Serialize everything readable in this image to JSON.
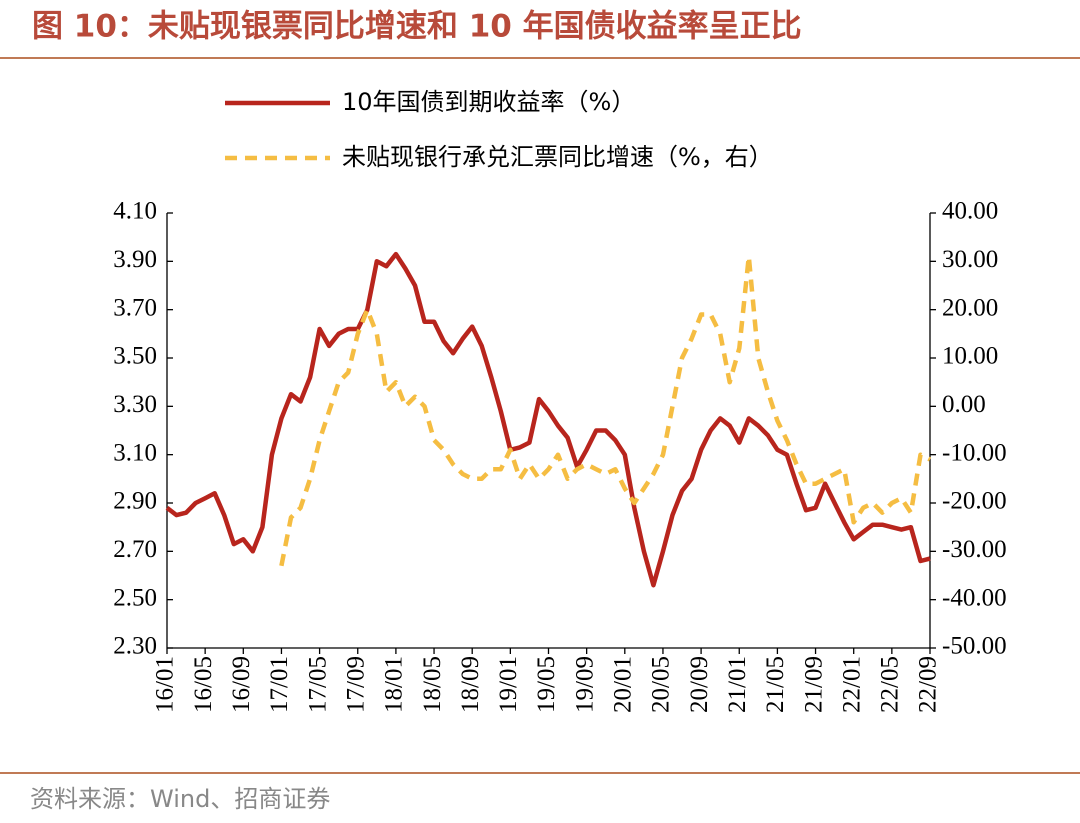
{
  "chart_data": {
    "type": "line",
    "title": "图 10：未贴现银票同比增速和 10 年国债收益率呈正比",
    "source": "资料来源：Wind、招商证券",
    "categories": [
      "16/01",
      null,
      null,
      null,
      "16/05",
      null,
      null,
      null,
      "16/09",
      null,
      null,
      null,
      "17/01",
      null,
      null,
      null,
      "17/05",
      null,
      null,
      null,
      "17/09",
      null,
      null,
      null,
      "18/01",
      null,
      null,
      null,
      "18/05",
      null,
      null,
      null,
      "18/09",
      null,
      null,
      null,
      "19/01",
      null,
      null,
      null,
      "19/05",
      null,
      null,
      null,
      "19/09",
      null,
      null,
      null,
      "20/01",
      null,
      null,
      null,
      "20/05",
      null,
      null,
      null,
      "20/09",
      null,
      null,
      null,
      "21/01",
      null,
      null,
      null,
      "21/05",
      null,
      null,
      null,
      "21/09",
      null,
      null,
      null,
      "22/01",
      null,
      null,
      null,
      "22/05",
      null,
      null,
      null,
      "22/09"
    ],
    "series": [
      {
        "name": "10年国债到期收益率（%）",
        "color": "#b8251d",
        "dash": false,
        "values": [
          2.88,
          2.85,
          2.86,
          2.9,
          2.92,
          2.94,
          2.85,
          2.73,
          2.75,
          2.7,
          2.8,
          3.1,
          3.25,
          3.35,
          3.32,
          3.42,
          3.62,
          3.55,
          3.6,
          3.62,
          3.62,
          3.7,
          3.9,
          3.88,
          3.93,
          3.87,
          3.8,
          3.65,
          3.65,
          3.57,
          3.52,
          3.58,
          3.63,
          3.55,
          3.42,
          3.28,
          3.12,
          3.13,
          3.15,
          3.33,
          3.28,
          3.22,
          3.17,
          3.05,
          3.12,
          3.2,
          3.2,
          3.16,
          3.1,
          2.88,
          2.7,
          2.56,
          2.7,
          2.85,
          2.95,
          3.0,
          3.12,
          3.2,
          3.25,
          3.22,
          3.15,
          3.25,
          3.22,
          3.18,
          3.12,
          3.1,
          2.98,
          2.87,
          2.88,
          2.98,
          2.9,
          2.82,
          2.75,
          2.78,
          2.81,
          2.81,
          2.8,
          2.79,
          2.8,
          2.66,
          2.67
        ]
      },
      {
        "name": "未贴现银行承兑汇票同比增速（%，右）",
        "color": "#f5bd42",
        "dash": true,
        "axis": "y2",
        "values": [
          null,
          null,
          null,
          null,
          null,
          null,
          null,
          null,
          null,
          null,
          null,
          null,
          -33,
          -23,
          -21,
          -15,
          -7,
          -1,
          5,
          7,
          15,
          20,
          15,
          3,
          5,
          0,
          2,
          0,
          -7,
          -9,
          -12,
          -14,
          -15,
          -15,
          -13,
          -13,
          -9,
          -15,
          -12,
          -15,
          -13,
          -10,
          -15,
          -13,
          -12,
          -13,
          -14,
          -13,
          -17,
          -20,
          -17,
          -14,
          -10,
          0,
          10,
          14,
          19,
          19,
          15,
          5,
          12,
          31,
          10,
          3,
          -3,
          -7,
          -12,
          -16,
          -16,
          -15,
          -14,
          -13,
          -24,
          -21,
          -20,
          -22,
          -20,
          -19,
          -22,
          -10,
          -11
        ]
      }
    ],
    "ylim": [
      2.3,
      4.1
    ],
    "yticks": [
      {
        "value": 2.3,
        "label": "2.30"
      },
      {
        "value": 2.5,
        "label": "2.50"
      },
      {
        "value": 2.7,
        "label": "2.70"
      },
      {
        "value": 2.9,
        "label": "2.90"
      },
      {
        "value": 3.1,
        "label": "3.10"
      },
      {
        "value": 3.3,
        "label": "3.30"
      },
      {
        "value": 3.5,
        "label": "3.50"
      },
      {
        "value": 3.7,
        "label": "3.70"
      },
      {
        "value": 3.9,
        "label": "3.90"
      },
      {
        "value": 4.1,
        "label": "4.10"
      }
    ],
    "y2lim": [
      -50,
      40
    ],
    "y2ticks": [
      {
        "value": -50,
        "label": "-50.00"
      },
      {
        "value": -40,
        "label": "-40.00"
      },
      {
        "value": -30,
        "label": "-30.00"
      },
      {
        "value": -20,
        "label": "-20.00"
      },
      {
        "value": -10,
        "label": "-10.00"
      },
      {
        "value": 0,
        "label": "0.00"
      },
      {
        "value": 10,
        "label": "10.00"
      },
      {
        "value": 20,
        "label": "20.00"
      },
      {
        "value": 30,
        "label": "30.00"
      },
      {
        "value": 40,
        "label": "40.00"
      }
    ],
    "grid": false
  }
}
